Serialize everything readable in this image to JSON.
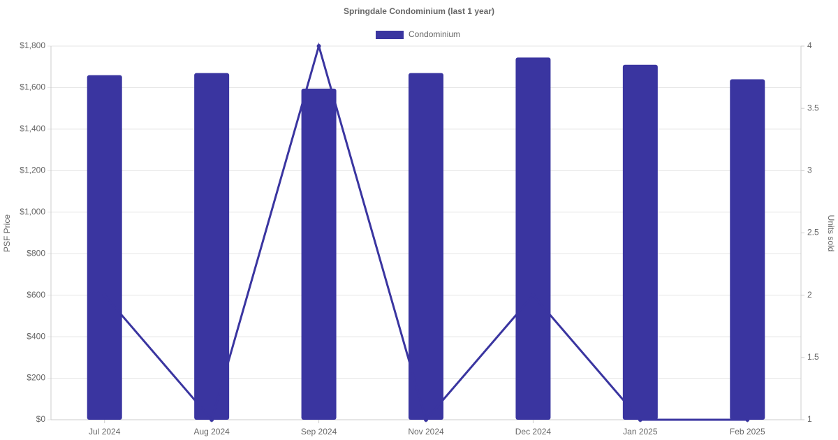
{
  "chart_data": {
    "type": "bar",
    "title": "Springdale Condominium (last 1 year)",
    "categories": [
      "Jul 2024",
      "Aug 2024",
      "Sep 2024",
      "Nov 2024",
      "Dec 2024",
      "Jan 2025",
      "Feb 2025"
    ],
    "series": [
      {
        "name": "Condominium",
        "type": "bar",
        "color": "#3a35a0",
        "values": [
          1660,
          1670,
          1595,
          1670,
          1745,
          1710,
          1640
        ]
      },
      {
        "type": "line",
        "axis": "y2",
        "color": "#3a35a0",
        "values": [
          2,
          1,
          4,
          1,
          2,
          1,
          1
        ]
      }
    ],
    "y_label": "PSF Price",
    "y2_label": "Units sold",
    "ylim": [
      0,
      1800
    ],
    "yticks": [
      {
        "value": 0,
        "label": "$0"
      },
      {
        "value": 200,
        "label": "$200"
      },
      {
        "value": 400,
        "label": "$400"
      },
      {
        "value": 600,
        "label": "$600"
      },
      {
        "value": 800,
        "label": "$800"
      },
      {
        "value": 1000,
        "label": "$1,000"
      },
      {
        "value": 1200,
        "label": "$1,200"
      },
      {
        "value": 1400,
        "label": "$1,400"
      },
      {
        "value": 1600,
        "label": "$1,600"
      },
      {
        "value": 1800,
        "label": "$1,800"
      }
    ],
    "y2lim": [
      1,
      4
    ],
    "y2ticks": [
      1,
      1.5,
      2,
      2.5,
      3,
      3.5,
      4
    ],
    "grid": true,
    "legend": "top"
  }
}
